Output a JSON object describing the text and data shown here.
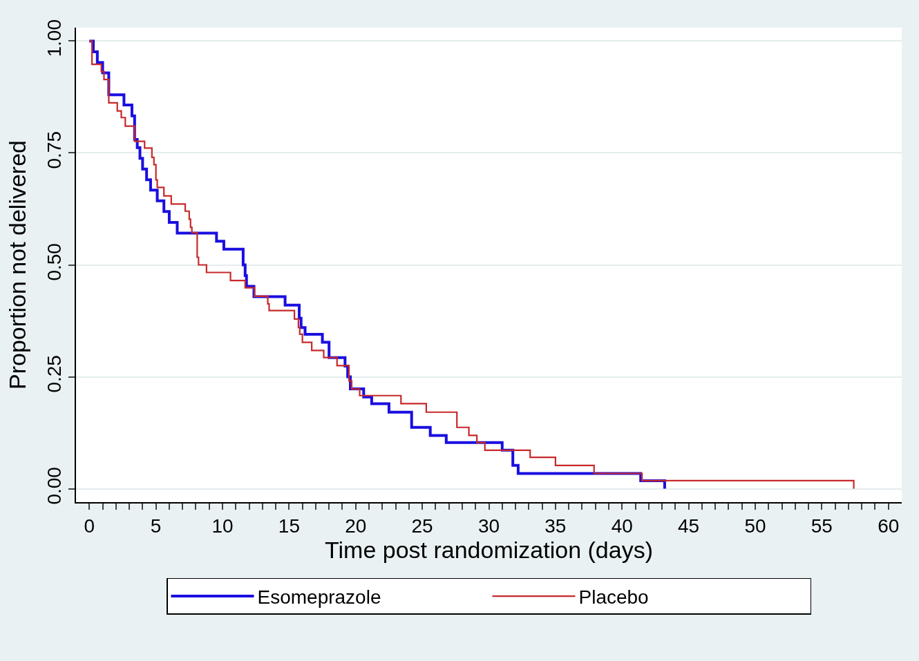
{
  "chart_data": {
    "type": "step",
    "xlabel": "Time post randomization (days)",
    "ylabel": "Proportion not delivered",
    "xlim": [
      -1,
      61
    ],
    "ylim": [
      -0.03,
      1.03
    ],
    "xticks": [
      0,
      {
        "value": 1,
        "label": null
      },
      {
        "value": 2,
        "label": null
      },
      {
        "value": 3,
        "label": null
      },
      {
        "value": 4,
        "label": null
      },
      5,
      {
        "value": 6,
        "label": null
      },
      {
        "value": 7,
        "label": null
      },
      {
        "value": 8,
        "label": null
      },
      {
        "value": 9,
        "label": null
      },
      10,
      {
        "value": 11,
        "label": null
      },
      {
        "value": 12,
        "label": null
      },
      {
        "value": 13,
        "label": null
      },
      {
        "value": 14,
        "label": null
      },
      15,
      {
        "value": 16,
        "label": null
      },
      {
        "value": 17,
        "label": null
      },
      {
        "value": 18,
        "label": null
      },
      {
        "value": 19,
        "label": null
      },
      20,
      {
        "value": 21,
        "label": null
      },
      {
        "value": 22,
        "label": null
      },
      {
        "value": 23,
        "label": null
      },
      {
        "value": 24,
        "label": null
      },
      25,
      {
        "value": 26,
        "label": null
      },
      {
        "value": 27,
        "label": null
      },
      {
        "value": 28,
        "label": null
      },
      {
        "value": 29,
        "label": null
      },
      30,
      {
        "value": 31,
        "label": null
      },
      {
        "value": 32,
        "label": null
      },
      {
        "value": 33,
        "label": null
      },
      {
        "value": 34,
        "label": null
      },
      35,
      {
        "value": 36,
        "label": null
      },
      {
        "value": 37,
        "label": null
      },
      {
        "value": 38,
        "label": null
      },
      {
        "value": 39,
        "label": null
      },
      40,
      {
        "value": 41,
        "label": null
      },
      {
        "value": 42,
        "label": null
      },
      {
        "value": 43,
        "label": null
      },
      {
        "value": 44,
        "label": null
      },
      45,
      {
        "value": 46,
        "label": null
      },
      {
        "value": 47,
        "label": null
      },
      {
        "value": 48,
        "label": null
      },
      {
        "value": 49,
        "label": null
      },
      50,
      {
        "value": 51,
        "label": null
      },
      {
        "value": 52,
        "label": null
      },
      {
        "value": 53,
        "label": null
      },
      {
        "value": 54,
        "label": null
      },
      55,
      {
        "value": 56,
        "label": null
      },
      {
        "value": 57,
        "label": null
      },
      {
        "value": 58,
        "label": null
      },
      {
        "value": 59,
        "label": null
      },
      60
    ],
    "yticks": [
      {
        "value": 0,
        "label": "0.00"
      },
      {
        "value": 0.25,
        "label": "0.25"
      },
      {
        "value": 0.5,
        "label": "0.50"
      },
      {
        "value": 0.75,
        "label": "0.75"
      },
      {
        "value": 1,
        "label": "1.00"
      }
    ],
    "grid": "y",
    "legend": "bottom",
    "marker": "none",
    "line_style": "solid",
    "series": [
      {
        "name": "Esomeprazole",
        "color": "#1a0ee0",
        "x": [
          0,
          0.3,
          0.6,
          1.0,
          1.46,
          2.6,
          3.2,
          3.4,
          3.6,
          3.8,
          4.0,
          4.3,
          4.6,
          5.1,
          5.6,
          6.0,
          6.6,
          9.55,
          10.1,
          11.55,
          11.7,
          11.8,
          12.36,
          14.7,
          15.76,
          15.9,
          16.2,
          17.5,
          18.0,
          19.2,
          19.4,
          19.6,
          20.6,
          21.2,
          22.5,
          24.2,
          25.6,
          26.8,
          31.0,
          31.8,
          32.2,
          41.4,
          43.2
        ],
        "values": [
          1.0,
          0.976,
          0.952,
          0.929,
          0.88,
          0.857,
          0.833,
          0.78,
          0.762,
          0.738,
          0.714,
          0.69,
          0.667,
          0.643,
          0.619,
          0.595,
          0.571,
          0.553,
          0.535,
          0.5,
          0.476,
          0.452,
          0.429,
          0.41,
          0.381,
          0.36,
          0.345,
          0.327,
          0.293,
          0.274,
          0.25,
          0.223,
          0.205,
          0.19,
          0.171,
          0.137,
          0.119,
          0.103,
          0.086,
          0.052,
          0.034,
          0.018,
          0
        ]
      },
      {
        "name": "Placebo",
        "color": "#c8282a",
        "x": [
          0,
          0.2,
          0.9,
          1.1,
          1.46,
          2.1,
          2.4,
          2.7,
          3.4,
          4.15,
          4.7,
          4.85,
          5.0,
          5.1,
          5.6,
          6.15,
          7.2,
          7.5,
          7.6,
          7.7,
          8.1,
          8.2,
          8.8,
          10.6,
          11.7,
          12.4,
          13.4,
          13.5,
          15.4,
          15.7,
          15.8,
          16.0,
          16.7,
          17.6,
          18.6,
          19.5,
          19.7,
          20.3,
          23.4,
          25.3,
          27.6,
          28.5,
          29.1,
          29.7,
          33.1,
          35.0,
          37.9,
          41.5,
          57.4
        ],
        "values": [
          1.0,
          0.948,
          0.932,
          0.914,
          0.862,
          0.844,
          0.829,
          0.81,
          0.776,
          0.761,
          0.74,
          0.724,
          0.69,
          0.673,
          0.654,
          0.636,
          0.62,
          0.602,
          0.584,
          0.572,
          0.517,
          0.5,
          0.483,
          0.465,
          0.449,
          0.43,
          0.413,
          0.398,
          0.379,
          0.36,
          0.345,
          0.327,
          0.309,
          0.293,
          0.275,
          0.241,
          0.223,
          0.208,
          0.19,
          0.171,
          0.137,
          0.119,
          0.103,
          0.086,
          0.07,
          0.052,
          0.034,
          0.018,
          0
        ]
      }
    ]
  }
}
